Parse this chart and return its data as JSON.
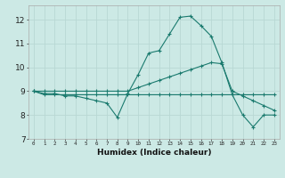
{
  "xlabel": "Humidex (Indice chaleur)",
  "ylabel": "",
  "bg_color": "#cce9e5",
  "grid_color": "#b8d8d4",
  "line_color": "#1a7a6e",
  "xlim": [
    -0.5,
    23.5
  ],
  "ylim": [
    7,
    12.6
  ],
  "yticks": [
    7,
    8,
    9,
    10,
    11,
    12
  ],
  "xticks": [
    0,
    1,
    2,
    3,
    4,
    5,
    6,
    7,
    8,
    9,
    10,
    11,
    12,
    13,
    14,
    15,
    16,
    17,
    18,
    19,
    20,
    21,
    22,
    23
  ],
  "series": [
    [
      9.0,
      8.9,
      8.9,
      8.8,
      8.8,
      8.7,
      8.6,
      8.5,
      7.9,
      8.9,
      9.7,
      10.6,
      10.7,
      11.4,
      12.1,
      12.15,
      11.75,
      11.3,
      10.2,
      8.85,
      8.0,
      7.5,
      8.0,
      8.0
    ],
    [
      9.0,
      9.0,
      9.0,
      9.0,
      9.0,
      9.0,
      9.0,
      9.0,
      9.0,
      9.0,
      9.15,
      9.3,
      9.45,
      9.6,
      9.75,
      9.9,
      10.05,
      10.2,
      10.15,
      9.0,
      8.8,
      8.6,
      8.4,
      8.2
    ],
    [
      9.0,
      8.85,
      8.85,
      8.85,
      8.85,
      8.85,
      8.85,
      8.85,
      8.85,
      8.85,
      8.85,
      8.85,
      8.85,
      8.85,
      8.85,
      8.85,
      8.85,
      8.85,
      8.85,
      8.85,
      8.85,
      8.85,
      8.85,
      8.85
    ]
  ]
}
